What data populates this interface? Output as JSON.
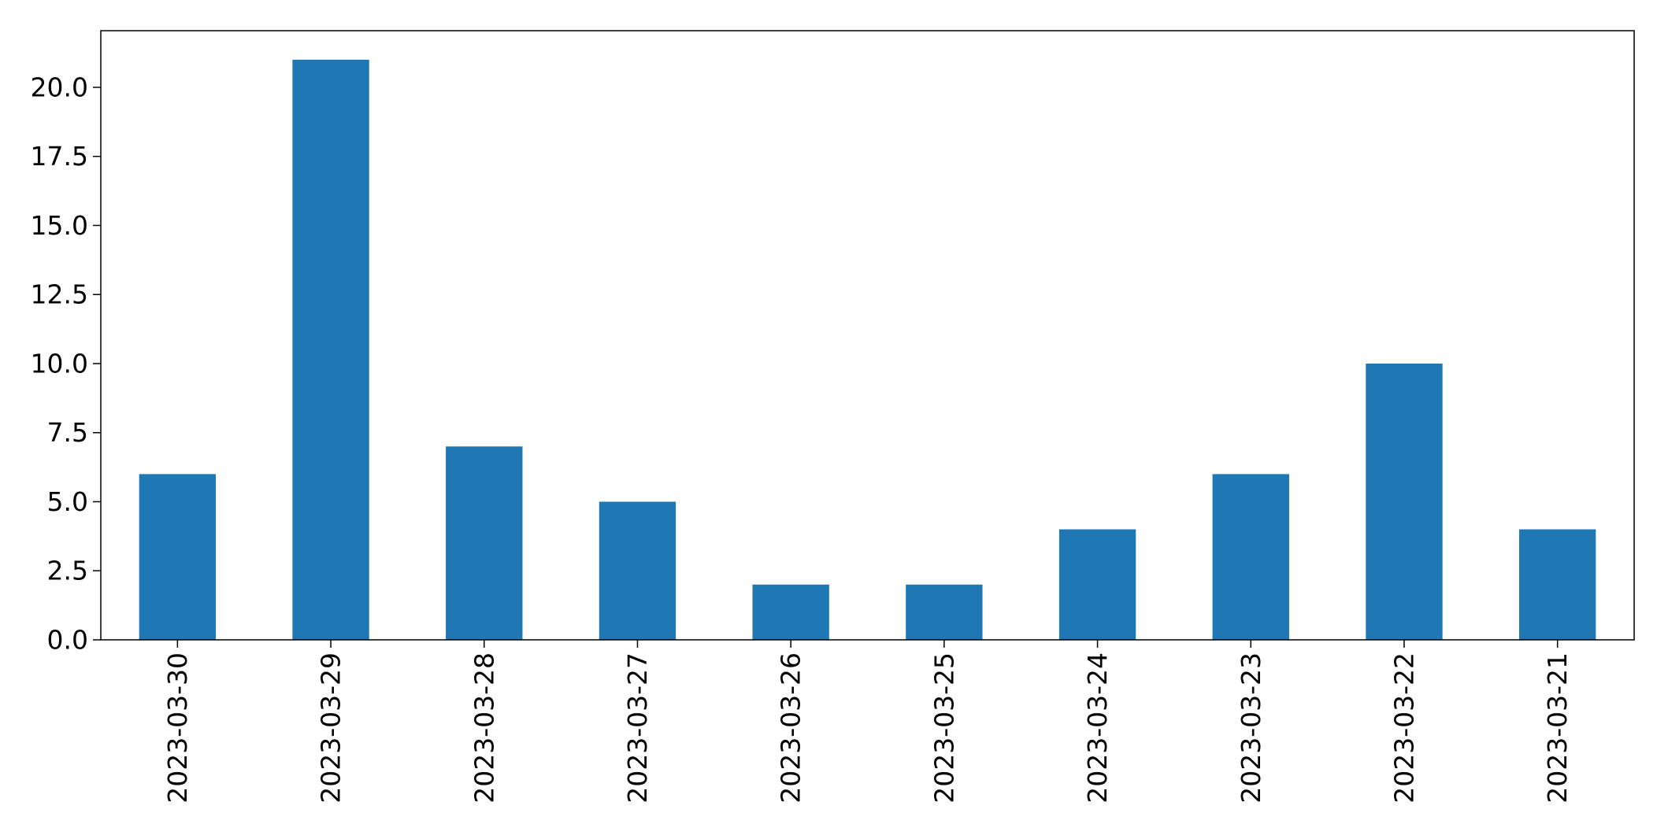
{
  "chart_data": {
    "type": "bar",
    "title": "",
    "xlabel": "",
    "ylabel": "",
    "categories": [
      "2023-03-30",
      "2023-03-29",
      "2023-03-28",
      "2023-03-27",
      "2023-03-26",
      "2023-03-25",
      "2023-03-24",
      "2023-03-23",
      "2023-03-22",
      "2023-03-21"
    ],
    "series": [
      {
        "values": [
          6,
          21,
          7,
          5,
          2,
          2,
          4,
          6,
          10,
          4
        ]
      }
    ],
    "ylim": [
      0,
      22.05
    ],
    "yticks": [
      "0.0",
      "2.5",
      "5.0",
      "7.5",
      "10.0",
      "12.5",
      "15.0",
      "17.5",
      "20.0"
    ],
    "legend": "none",
    "grid": false,
    "colors": {
      "bar": "#1f77b4",
      "axis": "#000000",
      "background": "#ffffff"
    }
  }
}
